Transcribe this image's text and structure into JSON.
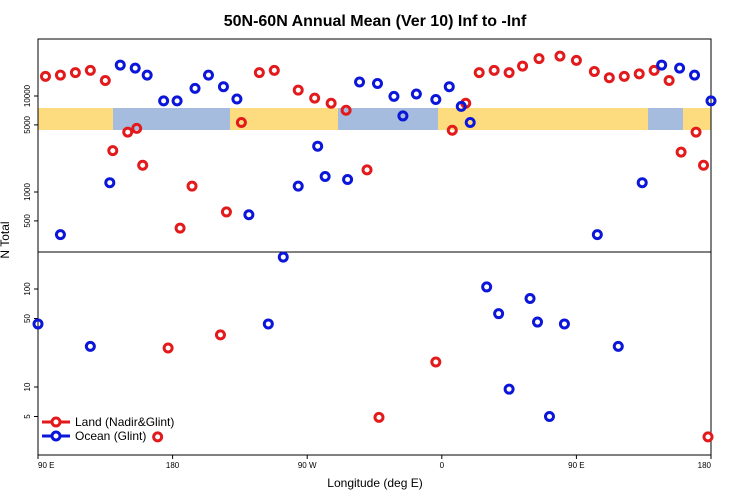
{
  "chart_data": {
    "type": "scatter",
    "title": "50N-60N Annual Mean (Ver 10)   Inf to -Inf",
    "xlabel": "Longitude (deg E)",
    "ylabel": "N Total",
    "x_ticks": [
      {
        "value": 90,
        "label": "90 E"
      },
      {
        "value": 180,
        "label": "180"
      },
      {
        "value": 270,
        "label": "90 W"
      },
      {
        "value": 360,
        "label": "0"
      },
      {
        "value": 450,
        "label": "90 E"
      },
      {
        "value": 540,
        "label": "180"
      }
    ],
    "xlim": [
      90,
      540
    ],
    "y_scale": "log",
    "y_ticks_upper": [
      {
        "value": 500,
        "label": "500"
      },
      {
        "value": 1000,
        "label": "1000"
      },
      {
        "value": 5000,
        "label": "5000"
      },
      {
        "value": 10000,
        "label": "10000"
      }
    ],
    "y_ticks_lower": [
      {
        "value": 5,
        "label": "5"
      },
      {
        "value": 10,
        "label": "10"
      },
      {
        "value": 50,
        "label": "50"
      },
      {
        "value": 100,
        "label": "100"
      }
    ],
    "map_band": {
      "land_color": "#a5bcde",
      "ocean_color": "#fddc80"
    },
    "grid": false,
    "legend_position": "bottom-left",
    "series": [
      {
        "name": "Land (Nadir&Glint)",
        "color": "#e31a1c",
        "points": [
          {
            "x": 95,
            "y": 16000
          },
          {
            "x": 105,
            "y": 16500
          },
          {
            "x": 115,
            "y": 17500
          },
          {
            "x": 125,
            "y": 18500
          },
          {
            "x": 135,
            "y": 14500
          },
          {
            "x": 140,
            "y": 2700
          },
          {
            "x": 150,
            "y": 4200
          },
          {
            "x": 156,
            "y": 4600
          },
          {
            "x": 160,
            "y": 1900
          },
          {
            "x": 185,
            "y": 420
          },
          {
            "x": 193,
            "y": 1150
          },
          {
            "x": 216,
            "y": 620
          },
          {
            "x": 226,
            "y": 5300
          },
          {
            "x": 238,
            "y": 17500
          },
          {
            "x": 248,
            "y": 18500
          },
          {
            "x": 264,
            "y": 11500
          },
          {
            "x": 275,
            "y": 9500
          },
          {
            "x": 286,
            "y": 8400
          },
          {
            "x": 296,
            "y": 7100
          },
          {
            "x": 310,
            "y": 1700
          },
          {
            "x": 367,
            "y": 4400
          },
          {
            "x": 376,
            "y": 8400
          },
          {
            "x": 385,
            "y": 17500
          },
          {
            "x": 395,
            "y": 18500
          },
          {
            "x": 405,
            "y": 17500
          },
          {
            "x": 414,
            "y": 20500
          },
          {
            "x": 425,
            "y": 24500
          },
          {
            "x": 439,
            "y": 26000
          },
          {
            "x": 450,
            "y": 23500
          },
          {
            "x": 462,
            "y": 18000
          },
          {
            "x": 472,
            "y": 15500
          },
          {
            "x": 482,
            "y": 16000
          },
          {
            "x": 492,
            "y": 17000
          },
          {
            "x": 502,
            "y": 18500
          },
          {
            "x": 512,
            "y": 14500
          },
          {
            "x": 520,
            "y": 2600
          },
          {
            "x": 530,
            "y": 4200
          },
          {
            "x": 535,
            "y": 1900
          },
          {
            "x": 177,
            "y": 25
          },
          {
            "x": 212,
            "y": 34
          },
          {
            "x": 318,
            "y": 4.9
          },
          {
            "x": 356,
            "y": 18
          },
          {
            "x": 170,
            "y": 3.1
          },
          {
            "x": 538,
            "y": 3.1
          }
        ]
      },
      {
        "name": "Ocean (Glint)",
        "color": "#0b16d9",
        "points": [
          {
            "x": 90,
            "y": 44
          },
          {
            "x": 105,
            "y": 360
          },
          {
            "x": 125,
            "y": 26
          },
          {
            "x": 138,
            "y": 1250
          },
          {
            "x": 145,
            "y": 21000
          },
          {
            "x": 155,
            "y": 19500
          },
          {
            "x": 163,
            "y": 16500
          },
          {
            "x": 174,
            "y": 8900
          },
          {
            "x": 183,
            "y": 8900
          },
          {
            "x": 195,
            "y": 12000
          },
          {
            "x": 204,
            "y": 16500
          },
          {
            "x": 214,
            "y": 12500
          },
          {
            "x": 223,
            "y": 9300
          },
          {
            "x": 231,
            "y": 580
          },
          {
            "x": 244,
            "y": 44
          },
          {
            "x": 254,
            "y": 210
          },
          {
            "x": 264,
            "y": 1150
          },
          {
            "x": 277,
            "y": 3000
          },
          {
            "x": 282,
            "y": 1450
          },
          {
            "x": 297,
            "y": 1350
          },
          {
            "x": 305,
            "y": 14000
          },
          {
            "x": 317,
            "y": 13500
          },
          {
            "x": 328,
            "y": 9900
          },
          {
            "x": 334,
            "y": 6200
          },
          {
            "x": 343,
            "y": 10500
          },
          {
            "x": 356,
            "y": 9200
          },
          {
            "x": 365,
            "y": 12500
          },
          {
            "x": 373,
            "y": 7800
          },
          {
            "x": 379,
            "y": 5300
          },
          {
            "x": 390,
            "y": 105
          },
          {
            "x": 398,
            "y": 56
          },
          {
            "x": 405,
            "y": 9.5
          },
          {
            "x": 419,
            "y": 80
          },
          {
            "x": 424,
            "y": 46
          },
          {
            "x": 432,
            "y": 5
          },
          {
            "x": 442,
            "y": 44
          },
          {
            "x": 464,
            "y": 360
          },
          {
            "x": 478,
            "y": 26
          },
          {
            "x": 494,
            "y": 1250
          },
          {
            "x": 507,
            "y": 21000
          },
          {
            "x": 519,
            "y": 19500
          },
          {
            "x": 529,
            "y": 16500
          },
          {
            "x": 540,
            "y": 8900
          }
        ]
      }
    ]
  }
}
